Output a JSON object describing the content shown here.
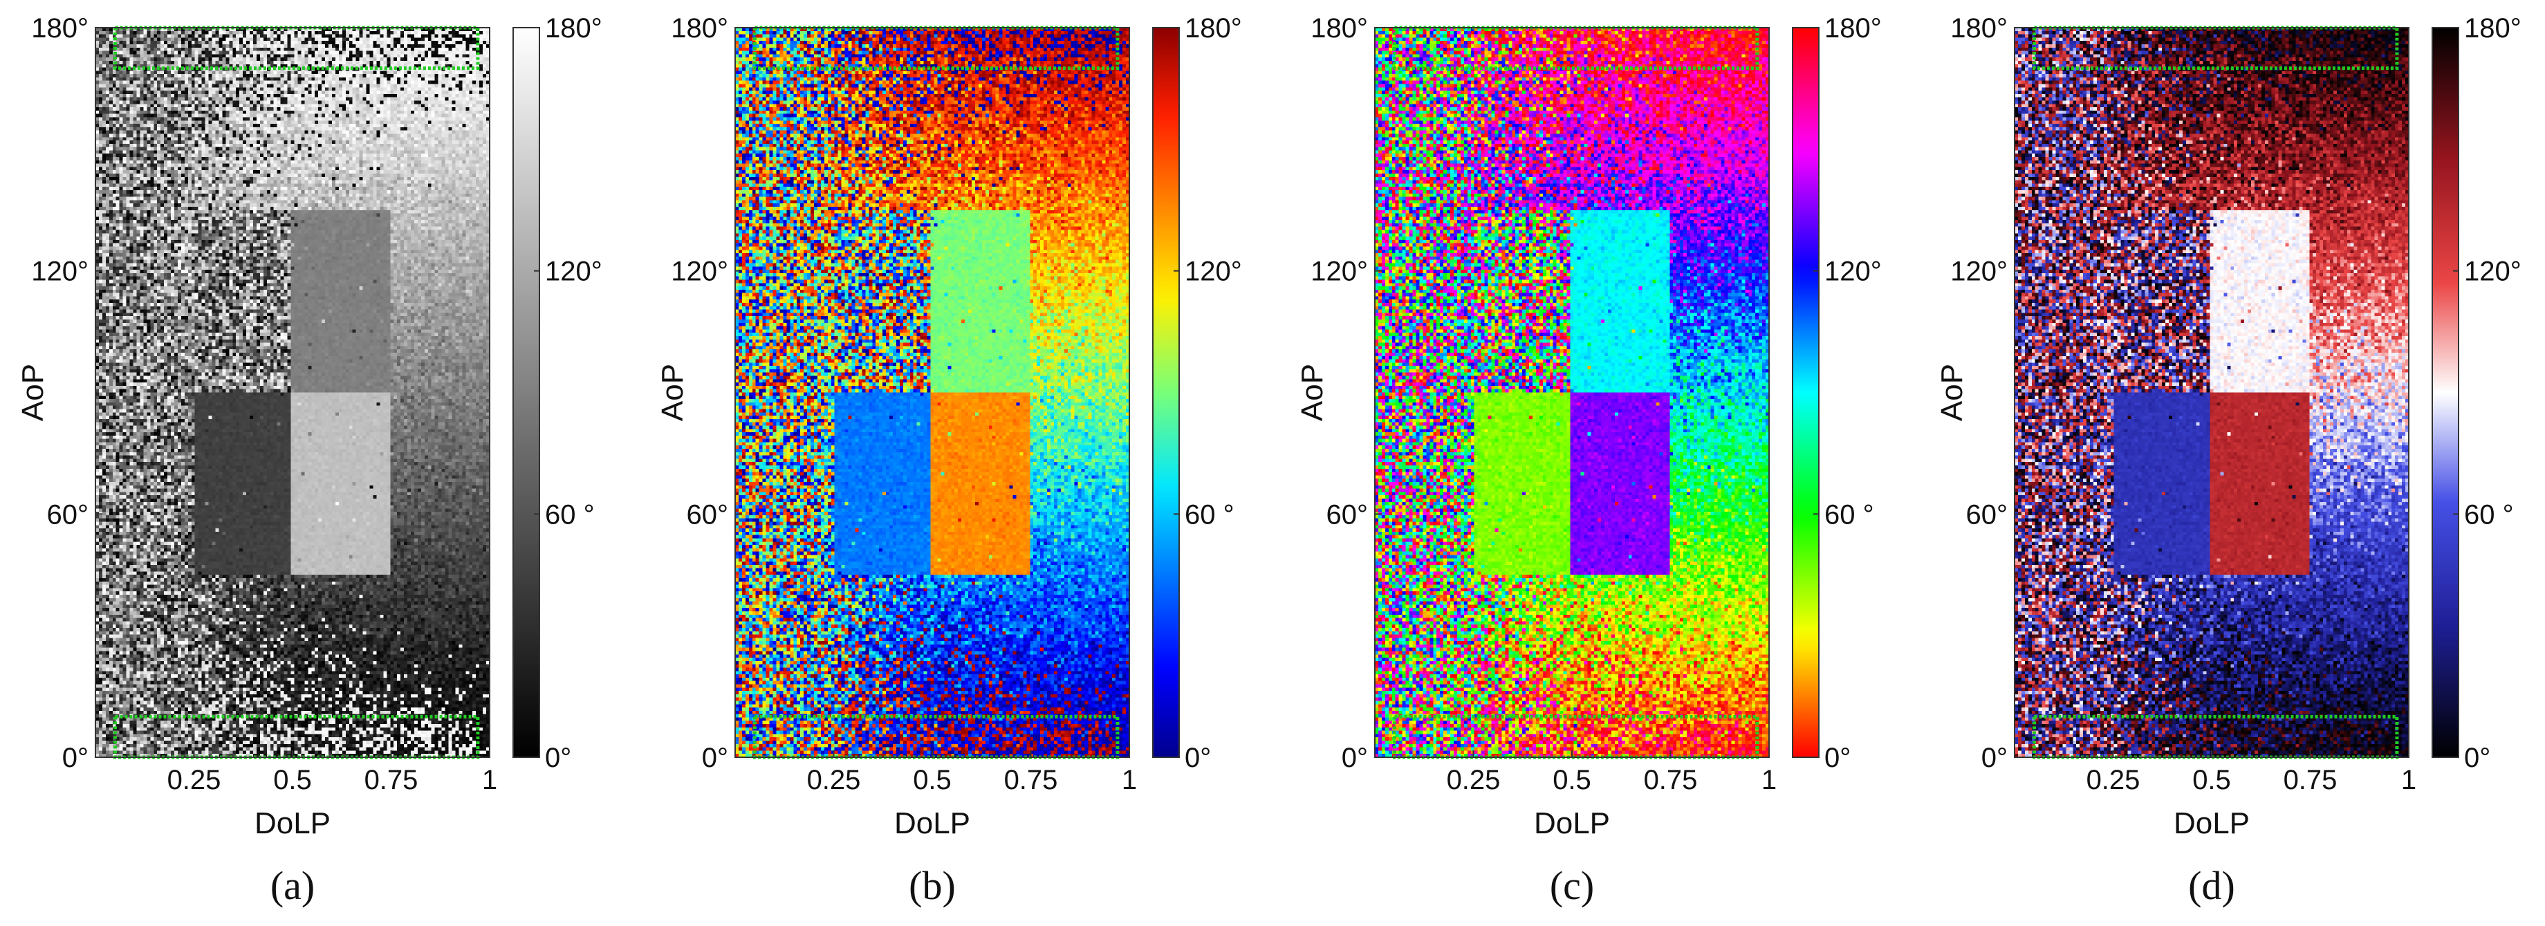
{
  "chart_data": [
    {
      "type": "heatmap",
      "caption": "(a)",
      "colormap": "gray",
      "xlabel": "DoLP",
      "ylabel": "AoP",
      "xlim": [
        0,
        1
      ],
      "ylim": [
        0,
        180
      ],
      "x_ticks": [
        "0.25",
        "0.5",
        "0.75",
        "1"
      ],
      "y_ticks": [
        "0°",
        "60°",
        "120°",
        "180°"
      ],
      "colorbar_ticks": [
        "0°",
        "60 °",
        "120°",
        "180°"
      ],
      "colorbar_range": [
        0,
        180
      ],
      "inset_regions": [
        {
          "dolp": [
            0.25,
            0.5
          ],
          "aop": [
            90,
            135
          ],
          "value": 0,
          "noise": "high"
        },
        {
          "dolp": [
            0.5,
            0.75
          ],
          "aop": [
            90,
            135
          ],
          "value": 90,
          "noise": "low"
        },
        {
          "dolp": [
            0.25,
            0.5
          ],
          "aop": [
            45,
            90
          ],
          "value": 45,
          "noise": "low"
        },
        {
          "dolp": [
            0.5,
            0.75
          ],
          "aop": [
            45,
            90
          ],
          "value": 135,
          "noise": "low"
        }
      ],
      "highlight_boxes": [
        {
          "dolp": [
            0.05,
            0.97
          ],
          "aop": [
            0,
            10
          ],
          "color": "#22cc22"
        },
        {
          "dolp": [
            0.05,
            0.97
          ],
          "aop": [
            170,
            180
          ],
          "color": "#22cc22"
        }
      ]
    },
    {
      "type": "heatmap",
      "caption": "(b)",
      "colormap": "jet",
      "xlabel": "DoLP",
      "ylabel": "AoP",
      "xlim": [
        0,
        1
      ],
      "ylim": [
        0,
        180
      ],
      "x_ticks": [
        "0.25",
        "0.5",
        "0.75",
        "1"
      ],
      "y_ticks": [
        "0°",
        "60°",
        "120°",
        "180°"
      ],
      "colorbar_ticks": [
        "0°",
        "60 °",
        "120°",
        "180°"
      ],
      "colorbar_range": [
        0,
        180
      ],
      "inset_regions": [
        {
          "dolp": [
            0.25,
            0.5
          ],
          "aop": [
            90,
            135
          ],
          "value": 0,
          "noise": "high"
        },
        {
          "dolp": [
            0.5,
            0.75
          ],
          "aop": [
            90,
            135
          ],
          "value": 90,
          "noise": "low"
        },
        {
          "dolp": [
            0.25,
            0.5
          ],
          "aop": [
            45,
            90
          ],
          "value": 45,
          "noise": "low"
        },
        {
          "dolp": [
            0.5,
            0.75
          ],
          "aop": [
            45,
            90
          ],
          "value": 135,
          "noise": "low"
        }
      ],
      "highlight_boxes": [
        {
          "dolp": [
            0.05,
            0.97
          ],
          "aop": [
            0,
            10
          ],
          "color": "#22cc22"
        },
        {
          "dolp": [
            0.05,
            0.97
          ],
          "aop": [
            170,
            180
          ],
          "color": "#22cc22"
        }
      ]
    },
    {
      "type": "heatmap",
      "caption": "(c)",
      "colormap": "hsv",
      "xlabel": "DoLP",
      "ylabel": "AoP",
      "xlim": [
        0,
        1
      ],
      "ylim": [
        0,
        180
      ],
      "x_ticks": [
        "0.25",
        "0.5",
        "0.75",
        "1"
      ],
      "y_ticks": [
        "0°",
        "60°",
        "120°",
        "180°"
      ],
      "colorbar_ticks": [
        "0°",
        "60 °",
        "120°",
        "180°"
      ],
      "colorbar_range": [
        0,
        180
      ],
      "inset_regions": [
        {
          "dolp": [
            0.25,
            0.5
          ],
          "aop": [
            90,
            135
          ],
          "value": 0,
          "noise": "high"
        },
        {
          "dolp": [
            0.5,
            0.75
          ],
          "aop": [
            90,
            135
          ],
          "value": 90,
          "noise": "low"
        },
        {
          "dolp": [
            0.25,
            0.5
          ],
          "aop": [
            45,
            90
          ],
          "value": 45,
          "noise": "low"
        },
        {
          "dolp": [
            0.5,
            0.75
          ],
          "aop": [
            45,
            90
          ],
          "value": 135,
          "noise": "low"
        }
      ],
      "highlight_boxes": [
        {
          "dolp": [
            0.05,
            0.97
          ],
          "aop": [
            0,
            10
          ],
          "color": "#22cc22"
        },
        {
          "dolp": [
            0.05,
            0.97
          ],
          "aop": [
            170,
            180
          ],
          "color": "#22cc22"
        }
      ]
    },
    {
      "type": "heatmap",
      "caption": "(d)",
      "colormap": "black-blue-white-red-black",
      "xlabel": "DoLP",
      "ylabel": "AoP",
      "xlim": [
        0,
        1
      ],
      "ylim": [
        0,
        180
      ],
      "x_ticks": [
        "0.25",
        "0.5",
        "0.75",
        "1"
      ],
      "y_ticks": [
        "0°",
        "60°",
        "120°",
        "180°"
      ],
      "colorbar_ticks": [
        "0°",
        "60 °",
        "120°",
        "180°"
      ],
      "colorbar_range": [
        0,
        180
      ],
      "inset_regions": [
        {
          "dolp": [
            0.25,
            0.5
          ],
          "aop": [
            90,
            135
          ],
          "value": 0,
          "noise": "high"
        },
        {
          "dolp": [
            0.5,
            0.75
          ],
          "aop": [
            90,
            135
          ],
          "value": 90,
          "noise": "low"
        },
        {
          "dolp": [
            0.25,
            0.5
          ],
          "aop": [
            45,
            90
          ],
          "value": 45,
          "noise": "low"
        },
        {
          "dolp": [
            0.5,
            0.75
          ],
          "aop": [
            45,
            90
          ],
          "value": 135,
          "noise": "low"
        }
      ],
      "highlight_boxes": [
        {
          "dolp": [
            0.05,
            0.97
          ],
          "aop": [
            0,
            10
          ],
          "color": "#22cc22"
        },
        {
          "dolp": [
            0.05,
            0.97
          ],
          "aop": [
            170,
            180
          ],
          "color": "#22cc22"
        }
      ]
    }
  ]
}
